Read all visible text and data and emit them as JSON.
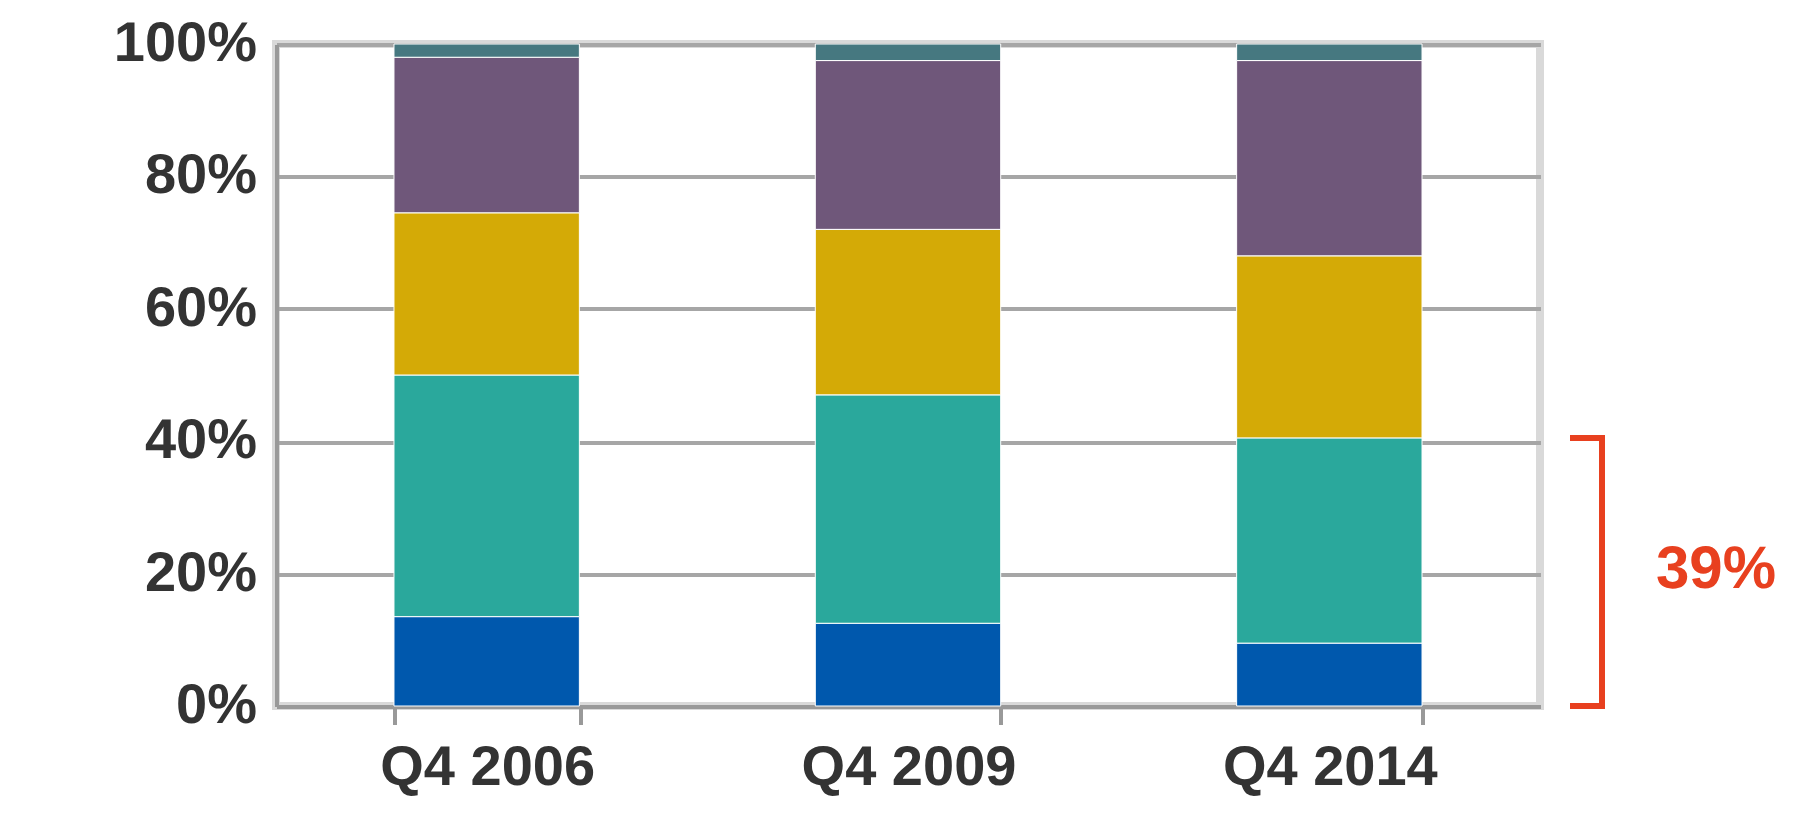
{
  "chart_data": {
    "type": "bar",
    "stacked": true,
    "categories": [
      "Q4 2006",
      "Q4 2009",
      "Q4 2014"
    ],
    "series": [
      {
        "color": "#0058ad",
        "values": [
          13.5,
          12.5,
          9.5
        ]
      },
      {
        "color": "#2aa89c",
        "values": [
          36.5,
          34.5,
          31
        ]
      },
      {
        "color": "#d4aa06",
        "values": [
          24.5,
          25,
          27.5
        ]
      },
      {
        "color": "#6f577a",
        "values": [
          23.5,
          25.5,
          29.5
        ]
      },
      {
        "color": "#467880",
        "values": [
          2,
          2.5,
          2.5
        ]
      }
    ],
    "ylim": [
      0,
      100
    ],
    "yticks": [
      {
        "value": 0,
        "label": "0%"
      },
      {
        "value": 20,
        "label": "20%"
      },
      {
        "value": 40,
        "label": "40%"
      },
      {
        "value": 60,
        "label": "60%"
      },
      {
        "value": 80,
        "label": "80%"
      },
      {
        "value": 100,
        "label": "100%"
      }
    ],
    "grid": "y",
    "legend": false,
    "annotations": [
      "39%"
    ]
  }
}
